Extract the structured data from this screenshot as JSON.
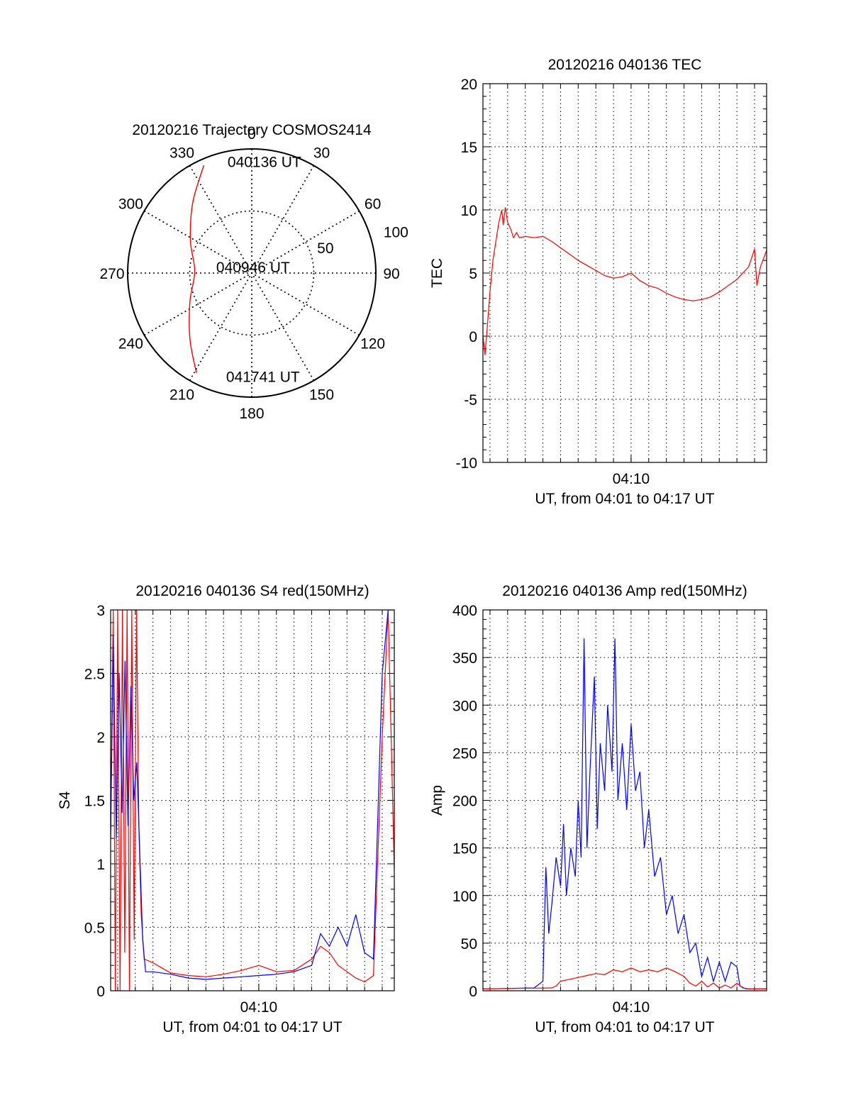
{
  "chart_data": [
    {
      "id": "trajectory",
      "type": "polar",
      "title": "20120216 Trajectory COSMOS2414",
      "azimuth_labels": [
        "0",
        "30",
        "60",
        "90",
        "120",
        "150",
        "180",
        "210",
        "240",
        "270",
        "300",
        "330"
      ],
      "radial_labels": [
        "50",
        "100"
      ],
      "radial_ticks": [
        50,
        100
      ],
      "rlim": [
        0,
        100
      ],
      "trajectory": {
        "color": "#ff0000",
        "points": [
          {
            "az": 336,
            "r": 95
          },
          {
            "az": 320,
            "r": 74
          },
          {
            "az": 298,
            "r": 56
          },
          {
            "az": 272,
            "r": 46
          },
          {
            "az": 245,
            "r": 55
          },
          {
            "az": 223,
            "r": 73
          },
          {
            "az": 209,
            "r": 92
          }
        ]
      },
      "annotations": [
        {
          "text": "040136 UT",
          "az": 343,
          "r": 94
        },
        {
          "text": "040946 UT",
          "az": 278,
          "r": 37
        },
        {
          "text": "041741 UT",
          "az": 199,
          "r": 88
        }
      ]
    },
    {
      "id": "tec",
      "type": "line",
      "title": "20120216 040136 TEC",
      "xlabel": "UT, from 04:01 to 04:17 UT",
      "ylabel": "TEC",
      "xlim": [
        "04:01:36",
        "04:17:41"
      ],
      "ylim": [
        -10,
        20
      ],
      "yticks": [
        -10,
        -5,
        0,
        5,
        10,
        15,
        20
      ],
      "xtick_labels": [
        {
          "time": "04:10:00",
          "label": "04:10"
        }
      ],
      "grid": true,
      "series": [
        {
          "color": "#ff0000",
          "points": [
            [
              "04:01:36",
              0
            ],
            [
              "04:01:43",
              -1.5
            ],
            [
              "04:01:50",
              0.5
            ],
            [
              "04:02:00",
              3.5
            ],
            [
              "04:02:10",
              6
            ],
            [
              "04:02:20",
              7.5
            ],
            [
              "04:02:30",
              9
            ],
            [
              "04:02:40",
              10
            ],
            [
              "04:02:45",
              8.8
            ],
            [
              "04:02:52",
              10.2
            ],
            [
              "04:03:00",
              9
            ],
            [
              "04:03:10",
              8.5
            ],
            [
              "04:03:20",
              7.8
            ],
            [
              "04:03:30",
              8.2
            ],
            [
              "04:03:40",
              7.8
            ],
            [
              "04:04:00",
              7.9
            ],
            [
              "04:04:30",
              7.8
            ],
            [
              "04:05:00",
              7.9
            ],
            [
              "04:05:30",
              7.5
            ],
            [
              "04:06:00",
              7
            ],
            [
              "04:06:30",
              6.5
            ],
            [
              "04:07:00",
              6
            ],
            [
              "04:07:30",
              5.6
            ],
            [
              "04:08:00",
              5.2
            ],
            [
              "04:08:30",
              4.8
            ],
            [
              "04:09:00",
              4.6
            ],
            [
              "04:09:30",
              4.7
            ],
            [
              "04:10:00",
              5
            ],
            [
              "04:10:30",
              4.4
            ],
            [
              "04:11:00",
              4
            ],
            [
              "04:11:30",
              3.8
            ],
            [
              "04:12:00",
              3.4
            ],
            [
              "04:12:30",
              3.1
            ],
            [
              "04:13:00",
              2.9
            ],
            [
              "04:13:30",
              2.8
            ],
            [
              "04:14:00",
              2.9
            ],
            [
              "04:14:30",
              3.1
            ],
            [
              "04:15:00",
              3.5
            ],
            [
              "04:15:30",
              4
            ],
            [
              "04:16:00",
              4.5
            ],
            [
              "04:16:40",
              5.5
            ],
            [
              "04:17:00",
              6.9
            ],
            [
              "04:17:08",
              4
            ],
            [
              "04:17:20",
              5.5
            ],
            [
              "04:17:41",
              6.8
            ]
          ]
        }
      ]
    },
    {
      "id": "s4",
      "type": "line",
      "title": "20120216 040136 S4 red(150MHz)",
      "xlabel": "UT, from 04:01 to 04:17 UT",
      "ylabel": "S4",
      "xlim": [
        "04:01:36",
        "04:17:41"
      ],
      "ylim": [
        0,
        3
      ],
      "yticks": [
        0,
        0.5,
        1,
        1.5,
        2,
        2.5,
        3
      ],
      "xtick_labels": [
        {
          "time": "04:10:00",
          "label": "04:10"
        }
      ],
      "grid": true,
      "series": [
        {
          "color": "#ff0000",
          "points": [
            [
              "04:01:36",
              1.2
            ],
            [
              "04:01:45",
              3
            ],
            [
              "04:01:52",
              0
            ],
            [
              "04:02:00",
              3
            ],
            [
              "04:02:08",
              0
            ],
            [
              "04:02:16",
              3
            ],
            [
              "04:02:24",
              0.3
            ],
            [
              "04:02:32",
              3
            ],
            [
              "04:02:40",
              0
            ],
            [
              "04:02:48",
              3
            ],
            [
              "04:02:56",
              0.4
            ],
            [
              "04:03:04",
              3
            ],
            [
              "04:03:12",
              1.3
            ],
            [
              "04:03:20",
              0.6
            ],
            [
              "04:03:30",
              0.25
            ],
            [
              "04:04:00",
              0.22
            ],
            [
              "04:04:30",
              0.18
            ],
            [
              "04:05:00",
              0.14
            ],
            [
              "04:06:00",
              0.12
            ],
            [
              "04:07:00",
              0.11
            ],
            [
              "04:08:00",
              0.13
            ],
            [
              "04:09:00",
              0.16
            ],
            [
              "04:10:00",
              0.2
            ],
            [
              "04:11:00",
              0.15
            ],
            [
              "04:12:00",
              0.16
            ],
            [
              "04:13:00",
              0.25
            ],
            [
              "04:13:30",
              0.35
            ],
            [
              "04:14:00",
              0.3
            ],
            [
              "04:14:30",
              0.2
            ],
            [
              "04:15:00",
              0.15
            ],
            [
              "04:15:30",
              0.1
            ],
            [
              "04:16:00",
              0.07
            ],
            [
              "04:16:30",
              0.12
            ],
            [
              "04:17:00",
              2
            ],
            [
              "04:17:20",
              3
            ],
            [
              "04:17:41",
              0.95
            ]
          ]
        },
        {
          "color": "#0000ff",
          "points": [
            [
              "04:01:36",
              1.2
            ],
            [
              "04:01:45",
              2.8
            ],
            [
              "04:01:55",
              1.2
            ],
            [
              "04:02:05",
              2.5
            ],
            [
              "04:02:15",
              1.4
            ],
            [
              "04:02:25",
              2.6
            ],
            [
              "04:02:35",
              1.3
            ],
            [
              "04:02:45",
              2.4
            ],
            [
              "04:02:55",
              1.5
            ],
            [
              "04:03:05",
              1.8
            ],
            [
              "04:03:15",
              1.1
            ],
            [
              "04:03:25",
              0.4
            ],
            [
              "04:03:35",
              0.15
            ],
            [
              "04:04:00",
              0.15
            ],
            [
              "04:05:00",
              0.13
            ],
            [
              "04:06:00",
              0.1
            ],
            [
              "04:07:00",
              0.09
            ],
            [
              "04:08:00",
              0.1
            ],
            [
              "04:09:00",
              0.11
            ],
            [
              "04:10:00",
              0.12
            ],
            [
              "04:11:00",
              0.13
            ],
            [
              "04:12:00",
              0.15
            ],
            [
              "04:13:00",
              0.2
            ],
            [
              "04:13:30",
              0.45
            ],
            [
              "04:14:00",
              0.35
            ],
            [
              "04:14:30",
              0.5
            ],
            [
              "04:15:00",
              0.35
            ],
            [
              "04:15:30",
              0.6
            ],
            [
              "04:16:00",
              0.3
            ],
            [
              "04:16:30",
              0.25
            ],
            [
              "04:17:00",
              2.5
            ],
            [
              "04:17:20",
              3
            ],
            [
              "04:17:41",
              3
            ]
          ]
        }
      ]
    },
    {
      "id": "amp",
      "type": "line",
      "title": "20120216 040136 Amp red(150MHz)",
      "xlabel": "UT, from 04:01 to 04:17 UT",
      "ylabel": "Amp",
      "xlim": [
        "04:01:36",
        "04:17:41"
      ],
      "ylim": [
        0,
        400
      ],
      "yticks": [
        0,
        50,
        100,
        150,
        200,
        250,
        300,
        350,
        400
      ],
      "xtick_labels": [
        {
          "time": "04:10:00",
          "label": "04:10"
        }
      ],
      "grid": true,
      "series": [
        {
          "color": "#0000ff",
          "points": [
            [
              "04:01:36",
              2
            ],
            [
              "04:04:30",
              3
            ],
            [
              "04:05:00",
              10
            ],
            [
              "04:05:10",
              130
            ],
            [
              "04:05:20",
              60
            ],
            [
              "04:05:30",
              90
            ],
            [
              "04:05:45",
              140
            ],
            [
              "04:06:00",
              110
            ],
            [
              "04:06:10",
              175
            ],
            [
              "04:06:20",
              100
            ],
            [
              "04:06:35",
              150
            ],
            [
              "04:06:50",
              120
            ],
            [
              "04:07:00",
              200
            ],
            [
              "04:07:10",
              140
            ],
            [
              "04:07:20",
              370
            ],
            [
              "04:07:30",
              150
            ],
            [
              "04:07:40",
              230
            ],
            [
              "04:07:55",
              330
            ],
            [
              "04:08:05",
              170
            ],
            [
              "04:08:15",
              260
            ],
            [
              "04:08:30",
              210
            ],
            [
              "04:08:40",
              300
            ],
            [
              "04:08:55",
              230
            ],
            [
              "04:09:05",
              370
            ],
            [
              "04:09:15",
              200
            ],
            [
              "04:09:30",
              260
            ],
            [
              "04:09:45",
              190
            ],
            [
              "04:10:00",
              280
            ],
            [
              "04:10:15",
              210
            ],
            [
              "04:10:30",
              230
            ],
            [
              "04:10:45",
              150
            ],
            [
              "04:11:00",
              190
            ],
            [
              "04:11:20",
              120
            ],
            [
              "04:11:40",
              140
            ],
            [
              "04:12:00",
              80
            ],
            [
              "04:12:20",
              100
            ],
            [
              "04:12:40",
              60
            ],
            [
              "04:13:00",
              80
            ],
            [
              "04:13:20",
              40
            ],
            [
              "04:13:40",
              50
            ],
            [
              "04:14:00",
              15
            ],
            [
              "04:14:20",
              35
            ],
            [
              "04:14:40",
              10
            ],
            [
              "04:15:00",
              30
            ],
            [
              "04:15:20",
              10
            ],
            [
              "04:15:40",
              30
            ],
            [
              "04:16:00",
              25
            ],
            [
              "04:16:10",
              5
            ],
            [
              "04:16:30",
              2
            ],
            [
              "04:17:41",
              2
            ]
          ]
        },
        {
          "color": "#ff0000",
          "points": [
            [
              "04:01:36",
              2
            ],
            [
              "04:05:30",
              3
            ],
            [
              "04:05:45",
              5
            ],
            [
              "04:06:00",
              10
            ],
            [
              "04:06:30",
              12
            ],
            [
              "04:07:00",
              14
            ],
            [
              "04:07:30",
              16
            ],
            [
              "04:08:00",
              18
            ],
            [
              "04:08:30",
              17
            ],
            [
              "04:09:00",
              22
            ],
            [
              "04:09:30",
              20
            ],
            [
              "04:10:00",
              24
            ],
            [
              "04:10:30",
              20
            ],
            [
              "04:11:00",
              22
            ],
            [
              "04:11:30",
              20
            ],
            [
              "04:12:00",
              24
            ],
            [
              "04:12:30",
              20
            ],
            [
              "04:13:00",
              15
            ],
            [
              "04:13:20",
              8
            ],
            [
              "04:13:40",
              5
            ],
            [
              "04:14:00",
              10
            ],
            [
              "04:14:20",
              4
            ],
            [
              "04:14:40",
              8
            ],
            [
              "04:15:00",
              3
            ],
            [
              "04:15:20",
              6
            ],
            [
              "04:15:40",
              3
            ],
            [
              "04:16:00",
              8
            ],
            [
              "04:16:20",
              3
            ],
            [
              "04:16:40",
              2
            ],
            [
              "04:17:41",
              2
            ]
          ]
        }
      ]
    }
  ]
}
